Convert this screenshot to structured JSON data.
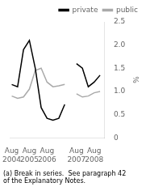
{
  "chart_data": {
    "type": "line",
    "x": [
      0,
      1,
      2,
      3,
      4,
      5,
      6,
      7,
      8,
      9,
      10,
      11,
      12,
      13,
      14,
      15
    ],
    "series": [
      {
        "name": "private",
        "color": "#000000",
        "values": [
          1.15,
          1.1,
          1.9,
          2.1,
          1.5,
          0.65,
          0.42,
          0.38,
          0.42,
          0.72,
          null,
          1.6,
          1.5,
          1.1,
          1.2,
          1.35
        ]
      },
      {
        "name": "public",
        "color": "#aaaaaa",
        "values": [
          0.9,
          0.85,
          0.88,
          1.05,
          1.45,
          1.5,
          1.2,
          1.1,
          1.12,
          1.15,
          null,
          0.95,
          0.88,
          0.9,
          0.97,
          1.0
        ]
      }
    ],
    "ylabel": "%",
    "xlim": [
      -0.3,
      15.8
    ],
    "xticks": [
      {
        "value": 0,
        "label": "Aug\n2004"
      },
      {
        "value": 3,
        "label": "Aug\n2005"
      },
      {
        "value": 6,
        "label": "Aug\n2006"
      },
      {
        "value": 11,
        "label": "Aug\n2007"
      },
      {
        "value": 14,
        "label": "Aug\n2008"
      }
    ],
    "ylim": [
      0,
      2.5
    ],
    "yticks": [
      0,
      0.5,
      {
        "value": 1,
        "label": "1.0"
      },
      1.5,
      {
        "value": 2,
        "label": "2.0"
      },
      2.5
    ],
    "grid": false,
    "legend": "upper right",
    "annotations": [
      "(a) Break in series.  See paragraph 42\nof the Explanatory Notes."
    ]
  }
}
